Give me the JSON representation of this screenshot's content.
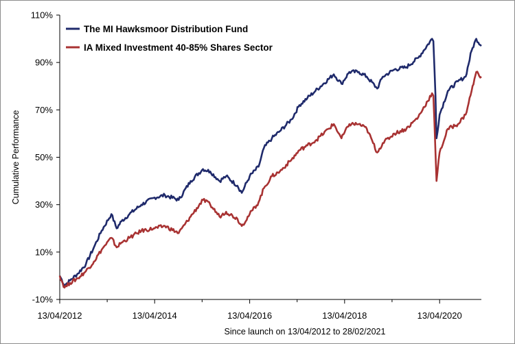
{
  "chart_data": {
    "type": "line",
    "title": "",
    "xlabel": "Since launch on 13/04/2012 to 28/02/2021",
    "ylabel": "Cumulative Performance",
    "ylim": [
      -10,
      110
    ],
    "y_ticks": [
      -10,
      10,
      30,
      50,
      70,
      90,
      110
    ],
    "y_tick_labels": [
      "-10%",
      "10%",
      "30%",
      "50%",
      "70%",
      "90%",
      "110%"
    ],
    "x_ticks": [
      "2012-04-13",
      "2014-04-13",
      "2016-04-13",
      "2018-04-13",
      "2020-04-13"
    ],
    "x_tick_labels": [
      "13/04/2012",
      "13/04/2014",
      "13/04/2016",
      "13/04/2018",
      "13/04/2020"
    ],
    "xlim": [
      "2012-04-13",
      "2021-02-28"
    ],
    "grid": false,
    "legend_position": "top-left",
    "series": [
      {
        "name": "The MI Hawksmoor Distribution Fund",
        "color": "#1f2a6b",
        "points": [
          [
            "2012-04-13",
            0
          ],
          [
            "2012-05-20",
            -4
          ],
          [
            "2012-07-01",
            -2
          ],
          [
            "2012-09-01",
            1
          ],
          [
            "2012-11-01",
            5
          ],
          [
            "2013-01-01",
            12
          ],
          [
            "2013-03-01",
            19
          ],
          [
            "2013-05-15",
            26
          ],
          [
            "2013-06-25",
            20
          ],
          [
            "2013-08-01",
            23
          ],
          [
            "2013-10-01",
            26
          ],
          [
            "2014-01-01",
            30
          ],
          [
            "2014-04-13",
            33
          ],
          [
            "2014-07-01",
            34
          ],
          [
            "2014-10-15",
            32
          ],
          [
            "2015-01-15",
            40
          ],
          [
            "2015-04-20",
            45
          ],
          [
            "2015-06-15",
            44
          ],
          [
            "2015-08-25",
            40
          ],
          [
            "2015-10-15",
            42
          ],
          [
            "2016-01-10",
            38
          ],
          [
            "2016-02-12",
            35
          ],
          [
            "2016-04-13",
            42
          ],
          [
            "2016-06-20",
            46
          ],
          [
            "2016-08-01",
            54
          ],
          [
            "2016-10-01",
            58
          ],
          [
            "2016-12-01",
            61
          ],
          [
            "2017-03-01",
            66
          ],
          [
            "2017-05-01",
            72
          ],
          [
            "2017-07-01",
            75
          ],
          [
            "2017-09-01",
            78
          ],
          [
            "2018-01-20",
            85
          ],
          [
            "2018-03-20",
            81
          ],
          [
            "2018-05-20",
            86
          ],
          [
            "2018-08-01",
            86
          ],
          [
            "2018-10-01",
            84
          ],
          [
            "2018-12-20",
            79
          ],
          [
            "2019-02-01",
            84
          ],
          [
            "2019-05-01",
            87
          ],
          [
            "2019-08-01",
            88
          ],
          [
            "2019-11-01",
            92
          ],
          [
            "2020-02-15",
            100
          ],
          [
            "2020-02-25",
            99
          ],
          [
            "2020-03-12",
            76
          ],
          [
            "2020-03-20",
            58
          ],
          [
            "2020-04-13",
            68
          ],
          [
            "2020-06-15",
            78
          ],
          [
            "2020-09-01",
            82
          ],
          [
            "2020-10-30",
            84
          ],
          [
            "2020-12-15",
            95
          ],
          [
            "2021-01-20",
            100
          ],
          [
            "2021-02-28",
            97
          ]
        ]
      },
      {
        "name": "IA Mixed Investment 40-85% Shares Sector",
        "color": "#a83232",
        "points": [
          [
            "2012-04-13",
            0
          ],
          [
            "2012-05-20",
            -5
          ],
          [
            "2012-07-01",
            -3
          ],
          [
            "2012-09-01",
            -1
          ],
          [
            "2012-11-01",
            2
          ],
          [
            "2013-01-01",
            6
          ],
          [
            "2013-03-01",
            11
          ],
          [
            "2013-05-15",
            16
          ],
          [
            "2013-06-25",
            12
          ],
          [
            "2013-08-01",
            14
          ],
          [
            "2013-10-01",
            16
          ],
          [
            "2014-01-01",
            19
          ],
          [
            "2014-04-13",
            20
          ],
          [
            "2014-07-01",
            21
          ],
          [
            "2014-10-15",
            18
          ],
          [
            "2015-01-15",
            25
          ],
          [
            "2015-04-20",
            32
          ],
          [
            "2015-06-15",
            30
          ],
          [
            "2015-08-25",
            25
          ],
          [
            "2015-10-15",
            27
          ],
          [
            "2016-01-10",
            24
          ],
          [
            "2016-02-12",
            21
          ],
          [
            "2016-04-13",
            26
          ],
          [
            "2016-06-20",
            31
          ],
          [
            "2016-08-01",
            37
          ],
          [
            "2016-10-01",
            42
          ],
          [
            "2016-12-01",
            44
          ],
          [
            "2017-03-01",
            49
          ],
          [
            "2017-05-01",
            53
          ],
          [
            "2017-07-01",
            55
          ],
          [
            "2017-09-01",
            57
          ],
          [
            "2018-01-20",
            64
          ],
          [
            "2018-03-20",
            58
          ],
          [
            "2018-05-20",
            64
          ],
          [
            "2018-08-01",
            64
          ],
          [
            "2018-10-01",
            62
          ],
          [
            "2018-12-20",
            52
          ],
          [
            "2019-02-01",
            56
          ],
          [
            "2019-05-01",
            60
          ],
          [
            "2019-08-01",
            62
          ],
          [
            "2019-11-01",
            67
          ],
          [
            "2020-02-15",
            77
          ],
          [
            "2020-02-25",
            76
          ],
          [
            "2020-03-12",
            52
          ],
          [
            "2020-03-20",
            40
          ],
          [
            "2020-04-13",
            52
          ],
          [
            "2020-06-15",
            62
          ],
          [
            "2020-09-01",
            64
          ],
          [
            "2020-10-30",
            68
          ],
          [
            "2020-12-15",
            78
          ],
          [
            "2021-01-20",
            86
          ],
          [
            "2021-02-28",
            84
          ]
        ]
      }
    ]
  }
}
